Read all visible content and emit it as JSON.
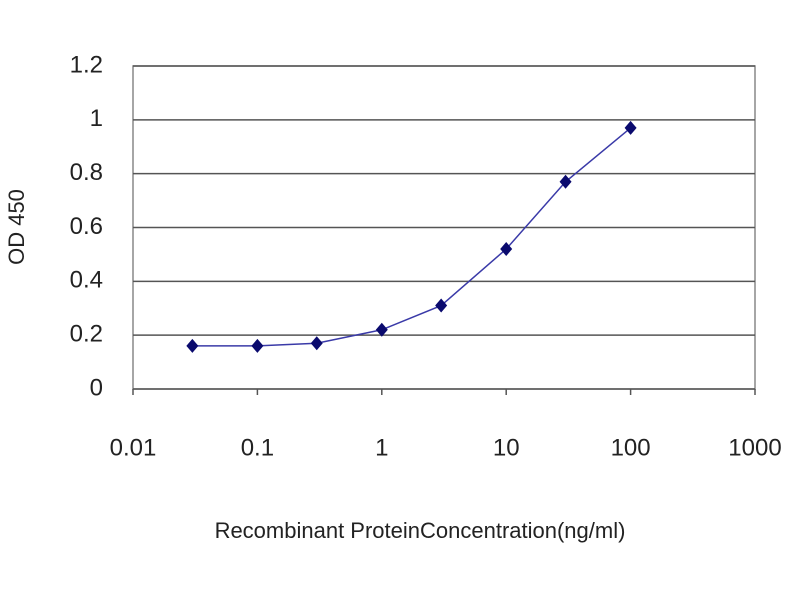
{
  "chart_data": {
    "type": "line",
    "xscale": "log",
    "x_label": "Recombinant ProteinConcentration(ng/ml)",
    "y_label": "OD 450",
    "x": [
      0.03,
      0.1,
      0.3,
      1,
      3,
      10,
      30,
      100
    ],
    "values": [
      0.16,
      0.16,
      0.17,
      0.22,
      0.31,
      0.52,
      0.77,
      0.97
    ],
    "color": "#3a3aa8",
    "marker_color": "#0a0a6e",
    "xlim": [
      0.01,
      1000
    ],
    "xticks": [
      0.01,
      0.1,
      1,
      10,
      100,
      1000
    ],
    "ylim": [
      0,
      1.2
    ],
    "yticks": [
      0,
      0.2,
      0.4,
      0.6,
      0.8,
      1,
      1.2
    ],
    "grid": true
  }
}
